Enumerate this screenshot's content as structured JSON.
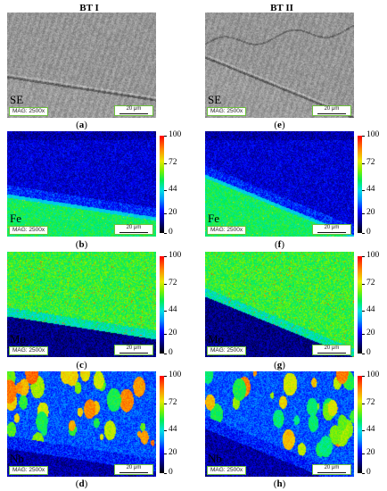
{
  "columns": [
    "BT I",
    "BT II"
  ],
  "panels": [
    {
      "letter": "a",
      "element": "SE",
      "type": "se",
      "variant": 1
    },
    {
      "letter": "e",
      "element": "SE",
      "type": "se",
      "variant": 2
    },
    {
      "letter": "b",
      "element": "Fe",
      "type": "fe",
      "variant": 1
    },
    {
      "letter": "f",
      "element": "Fe",
      "type": "fe",
      "variant": 2
    },
    {
      "letter": "c",
      "element": "Mo",
      "type": "mo",
      "variant": 1
    },
    {
      "letter": "g",
      "element": "Mo",
      "type": "mo",
      "variant": 2
    },
    {
      "letter": "d",
      "element": "Nb",
      "type": "nb",
      "variant": 1
    },
    {
      "letter": "h",
      "element": "Nb",
      "type": "nb",
      "variant": 2
    }
  ],
  "mag_label": "MAG: 2500x",
  "scale_label": "20 μm",
  "colorbar": {
    "ticks": [
      "100",
      "72",
      "44",
      "20",
      "0"
    ],
    "colors": [
      "#000000",
      "#0000ff",
      "#00e0e0",
      "#00ee55",
      "#e8e800",
      "#ff0000"
    ]
  }
}
